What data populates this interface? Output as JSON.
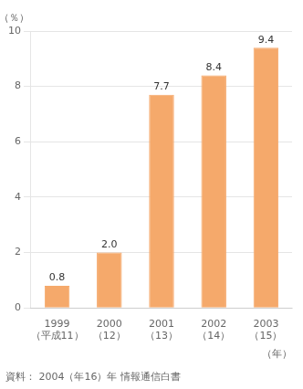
{
  "chart_data": {
    "type": "bar",
    "categories": [
      [
        "1999",
        "（平成11）"
      ],
      [
        "2000",
        "（12）"
      ],
      [
        "2001",
        "（13）"
      ],
      [
        "2002",
        "（14）"
      ],
      [
        "2003",
        "（15）"
      ]
    ],
    "values": [
      0.8,
      2.0,
      7.7,
      8.4,
      9.4
    ],
    "value_labels": [
      "0.8",
      "2.0",
      "7.7",
      "8.4",
      "9.4"
    ],
    "data_labels": true,
    "color": "#F5A96B",
    "xlabel": "（年）",
    "ylabel": "（％）",
    "source": "資料： 2004（年16）年 情報通信白書",
    "ylim": [
      0,
      10
    ],
    "yticks": [
      0,
      2,
      4,
      6,
      8,
      10
    ],
    "grid": true
  }
}
